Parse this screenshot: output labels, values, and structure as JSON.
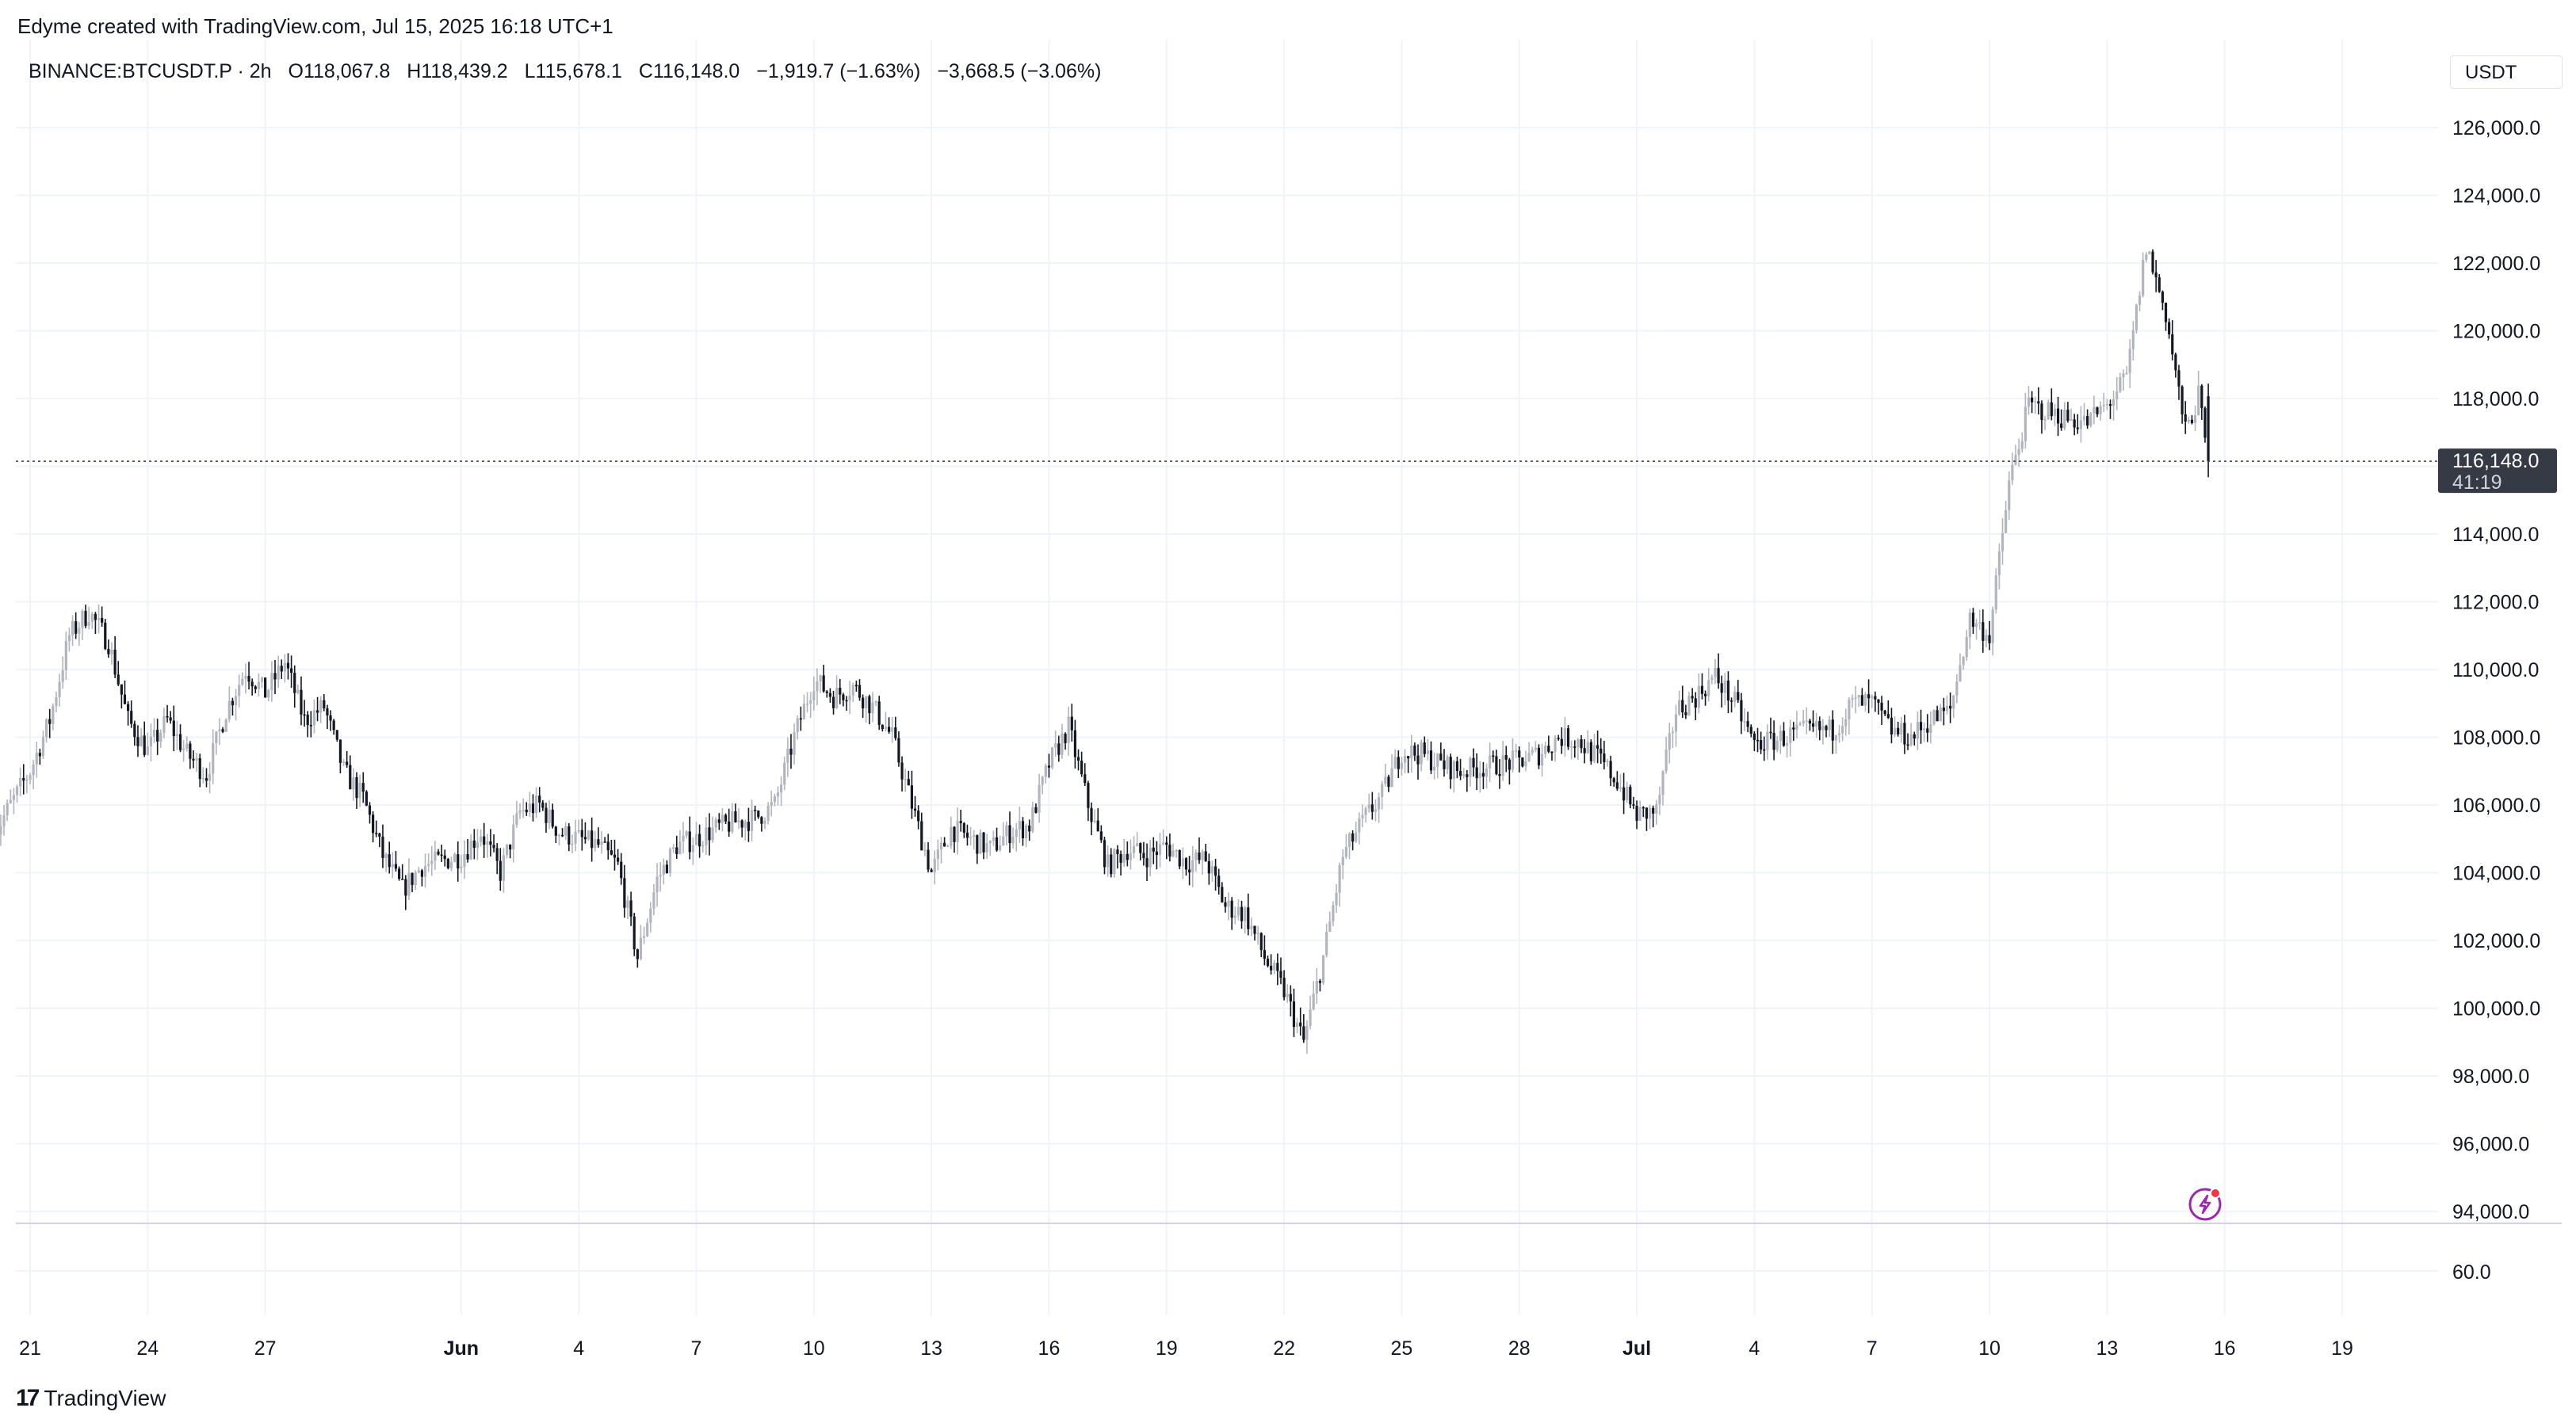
{
  "header": {
    "credit": "Edyme created with TradingView.com, Jul 15, 2025 16:18 UTC+1"
  },
  "legend": {
    "symbol": "BINANCE:BTCUSDT.P · 2h",
    "open": "O118,067.8",
    "high": "H118,439.2",
    "low": "L115,678.1",
    "close": "C116,148.0",
    "change": "−1,919.7 (−1.63%)",
    "change2": "−3,668.5 (−3.06%)"
  },
  "currency": "USDT",
  "last_price": {
    "value": "116,148.0",
    "countdown": "41:19"
  },
  "indicator_tick": "60.0",
  "brand": {
    "name": "TradingView",
    "logo_mark": "17"
  },
  "icons": {
    "alert": "lightning-icon"
  },
  "colors": {
    "candle_up": "#b2b5be",
    "candle_down": "#131722",
    "price_tag": "#363a45",
    "alert_accent": "#9c27b0"
  },
  "chart_data": {
    "type": "candlestick",
    "interval": "2h",
    "ylim": [
      93000,
      127500
    ],
    "y_ticks": [
      94000,
      96000,
      98000,
      100000,
      102000,
      104000,
      106000,
      108000,
      110000,
      112000,
      114000,
      116000,
      118000,
      120000,
      122000,
      124000,
      126000
    ],
    "y_tick_labels": [
      "94,000.0",
      "96,000.0",
      "98,000.0",
      "100,000.0",
      "102,000.0",
      "104,000.0",
      "106,000.0",
      "108,000.0",
      "110,000.0",
      "112,000.0",
      "114,000.0",
      "",
      "118,000.0",
      "120,000.0",
      "122,000.0",
      "124,000.0",
      "126,000.0"
    ],
    "x_ticks": [
      {
        "date": "2025-05-21",
        "label": "21"
      },
      {
        "date": "2025-05-24",
        "label": "24"
      },
      {
        "date": "2025-05-27",
        "label": "27"
      },
      {
        "date": "2025-06-01",
        "label": "Jun"
      },
      {
        "date": "2025-06-04",
        "label": "4"
      },
      {
        "date": "2025-06-07",
        "label": "7"
      },
      {
        "date": "2025-06-10",
        "label": "10"
      },
      {
        "date": "2025-06-13",
        "label": "13"
      },
      {
        "date": "2025-06-16",
        "label": "16"
      },
      {
        "date": "2025-06-19",
        "label": "19"
      },
      {
        "date": "2025-06-22",
        "label": "22"
      },
      {
        "date": "2025-06-25",
        "label": "25"
      },
      {
        "date": "2025-06-28",
        "label": "28"
      },
      {
        "date": "2025-07-01",
        "label": "Jul"
      },
      {
        "date": "2025-07-04",
        "label": "4"
      },
      {
        "date": "2025-07-07",
        "label": "7"
      },
      {
        "date": "2025-07-10",
        "label": "10"
      },
      {
        "date": "2025-07-13",
        "label": "13"
      },
      {
        "date": "2025-07-16",
        "label": "16"
      },
      {
        "date": "2025-07-19",
        "label": "19"
      }
    ],
    "last_close": 116148,
    "close_path": [
      [
        "2025-05-20",
        105000
      ],
      [
        "2025-05-21",
        107000
      ],
      [
        "2025-05-21T12",
        108500
      ],
      [
        "2025-05-22",
        111000
      ],
      [
        "2025-05-22T12",
        111700
      ],
      [
        "2025-05-23",
        110800
      ],
      [
        "2025-05-23T12",
        108500
      ],
      [
        "2025-05-24",
        107600
      ],
      [
        "2025-05-24T12",
        108500
      ],
      [
        "2025-05-25",
        107500
      ],
      [
        "2025-05-25T12",
        106900
      ],
      [
        "2025-05-26",
        108800
      ],
      [
        "2025-05-26T12",
        110000
      ],
      [
        "2025-05-27",
        109300
      ],
      [
        "2025-05-27T12",
        110200
      ],
      [
        "2025-05-28",
        108500
      ],
      [
        "2025-05-28T12",
        108900
      ],
      [
        "2025-05-29",
        107000
      ],
      [
        "2025-05-29T12",
        106200
      ],
      [
        "2025-05-30",
        104500
      ],
      [
        "2025-05-30T12",
        103500
      ],
      [
        "2025-05-31",
        104200
      ],
      [
        "2025-06-01",
        104500
      ],
      [
        "2025-06-01T12",
        105200
      ],
      [
        "2025-06-02",
        104000
      ],
      [
        "2025-06-02T12",
        105800
      ],
      [
        "2025-06-03",
        106000
      ],
      [
        "2025-06-03T12",
        105200
      ],
      [
        "2025-06-04",
        105000
      ],
      [
        "2025-06-04T12",
        104800
      ],
      [
        "2025-06-05",
        104200
      ],
      [
        "2025-06-05T12",
        101500
      ],
      [
        "2025-06-06",
        103800
      ],
      [
        "2025-06-06T12",
        104800
      ],
      [
        "2025-06-07",
        105000
      ],
      [
        "2025-06-07T12",
        105300
      ],
      [
        "2025-06-08",
        105500
      ],
      [
        "2025-06-08T12",
        105600
      ],
      [
        "2025-06-09",
        106000
      ],
      [
        "2025-06-09T12",
        108000
      ],
      [
        "2025-06-10",
        109700
      ],
      [
        "2025-06-10T12",
        109200
      ],
      [
        "2025-06-11",
        109500
      ],
      [
        "2025-06-11T12",
        108900
      ],
      [
        "2025-06-12",
        108000
      ],
      [
        "2025-06-12T12",
        106000
      ],
      [
        "2025-06-13",
        104000
      ],
      [
        "2025-06-13T12",
        105300
      ],
      [
        "2025-06-14",
        105000
      ],
      [
        "2025-06-14T12",
        104700
      ],
      [
        "2025-06-15",
        105200
      ],
      [
        "2025-06-15T12",
        105400
      ],
      [
        "2025-06-16",
        107200
      ],
      [
        "2025-06-16T12",
        108300
      ],
      [
        "2025-06-17",
        106000
      ],
      [
        "2025-06-17T12",
        104200
      ],
      [
        "2025-06-18",
        104700
      ],
      [
        "2025-06-18T12",
        104500
      ],
      [
        "2025-06-19",
        104800
      ],
      [
        "2025-06-19T12",
        104300
      ],
      [
        "2025-06-20",
        104400
      ],
      [
        "2025-06-20T12",
        103000
      ],
      [
        "2025-06-21",
        102800
      ],
      [
        "2025-06-21T12",
        101500
      ],
      [
        "2025-06-22",
        100500
      ],
      [
        "2025-06-22T12",
        99000
      ],
      [
        "2025-06-23",
        101500
      ],
      [
        "2025-06-23T12",
        104500
      ],
      [
        "2025-06-24",
        105500
      ],
      [
        "2025-06-24T12",
        106300
      ],
      [
        "2025-06-25",
        107600
      ],
      [
        "2025-06-25T12",
        107500
      ],
      [
        "2025-06-26",
        107200
      ],
      [
        "2025-06-26T12",
        107000
      ],
      [
        "2025-06-27",
        107100
      ],
      [
        "2025-06-27T12",
        107200
      ],
      [
        "2025-06-28",
        107300
      ],
      [
        "2025-06-28T12",
        107500
      ],
      [
        "2025-06-29",
        108000
      ],
      [
        "2025-06-29T12",
        107900
      ],
      [
        "2025-06-30",
        107400
      ],
      [
        "2025-06-30T12",
        106700
      ],
      [
        "2025-07-01",
        105700
      ],
      [
        "2025-07-01T12",
        105800
      ],
      [
        "2025-07-02",
        108800
      ],
      [
        "2025-07-02T12",
        109200
      ],
      [
        "2025-07-03",
        109800
      ],
      [
        "2025-07-03T12",
        109000
      ],
      [
        "2025-07-04",
        107800
      ],
      [
        "2025-07-04T12",
        107900
      ],
      [
        "2025-07-05",
        108100
      ],
      [
        "2025-07-05T12",
        108200
      ],
      [
        "2025-07-06",
        108200
      ],
      [
        "2025-07-06T12",
        109000
      ],
      [
        "2025-07-07",
        109000
      ],
      [
        "2025-07-07T12",
        108200
      ],
      [
        "2025-07-08",
        108000
      ],
      [
        "2025-07-08T12",
        108500
      ],
      [
        "2025-07-09",
        108800
      ],
      [
        "2025-07-09T12",
        111500
      ],
      [
        "2025-07-10",
        111000
      ],
      [
        "2025-07-10T12",
        115500
      ],
      [
        "2025-07-11",
        117800
      ],
      [
        "2025-07-11T12",
        117600
      ],
      [
        "2025-07-12",
        117400
      ],
      [
        "2025-07-12T12",
        117300
      ],
      [
        "2025-07-13",
        117800
      ],
      [
        "2025-07-13T12",
        118600
      ],
      [
        "2025-07-14",
        122500
      ],
      [
        "2025-07-14T12",
        120500
      ],
      [
        "2025-07-15",
        117000
      ],
      [
        "2025-07-15T08",
        118067.8
      ],
      [
        "2025-07-15T14",
        116148
      ]
    ]
  }
}
